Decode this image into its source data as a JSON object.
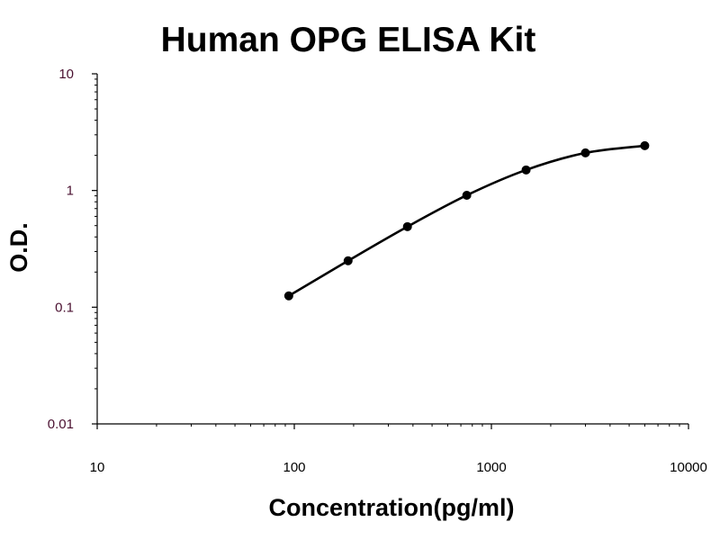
{
  "chart_data": {
    "type": "line",
    "title": "Human OPG ELISA Kit",
    "xlabel": "Concentration(pg/ml)",
    "ylabel": "O.D.",
    "xscale": "log",
    "yscale": "log",
    "xlim": [
      10,
      10000
    ],
    "ylim": [
      0.01,
      10
    ],
    "x_ticks": [
      "10",
      "100",
      "1000",
      "10000"
    ],
    "y_ticks": [
      "0.01",
      "0.1",
      "1",
      "10"
    ],
    "grid": false,
    "legend": "none",
    "series": [
      {
        "x": [
          93.75,
          187.5,
          375,
          750,
          1500,
          3000,
          6000
        ],
        "y": [
          0.125,
          0.25,
          0.49,
          0.91,
          1.5,
          2.1,
          2.42
        ],
        "marker": "circle"
      }
    ],
    "colors": {
      "line": "#000000",
      "marker": "#000000",
      "y_tick_label": "#4a1030",
      "x_tick_label": "#000000"
    }
  }
}
